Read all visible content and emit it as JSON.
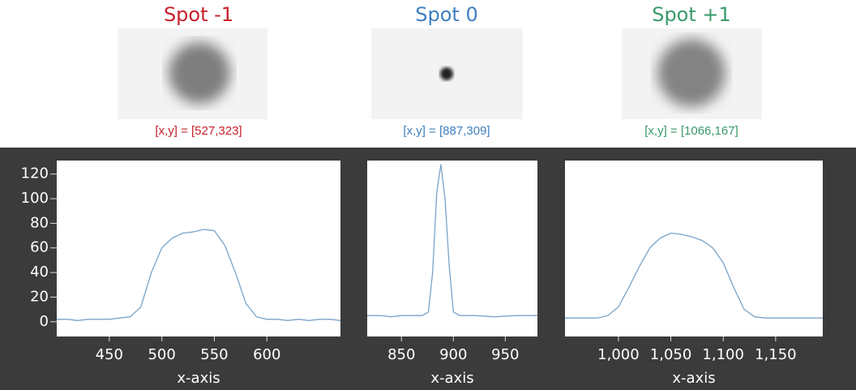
{
  "chart_data": [
    {
      "type": "line",
      "title": "Spot -1",
      "title_color": "#c8202a",
      "annotation": "[x,y] = [527,323]",
      "xlabel": "x-axis",
      "x": [
        400,
        410,
        420,
        430,
        440,
        450,
        460,
        470,
        480,
        490,
        500,
        510,
        520,
        530,
        540,
        550,
        560,
        570,
        580,
        590,
        600,
        610,
        620,
        630,
        640,
        650,
        660,
        670
      ],
      "values": [
        2,
        2,
        1,
        2,
        2,
        2,
        3,
        4,
        12,
        40,
        60,
        68,
        72,
        73,
        75,
        74,
        62,
        40,
        15,
        4,
        2,
        2,
        1,
        2,
        1,
        2,
        2,
        1
      ],
      "color": "#7aa3c8",
      "xlim": [
        400,
        670
      ],
      "ylim": [
        -12,
        131
      ],
      "xticks": [
        450,
        500,
        550,
        600
      ],
      "yticks": [
        0,
        20,
        40,
        60,
        80,
        100,
        120
      ]
    },
    {
      "type": "line",
      "title": "Spot 0",
      "title_color": "#3f7fc0",
      "annotation": "[x,y] = [887,309]",
      "xlabel": "x-axis",
      "x": [
        817,
        830,
        840,
        850,
        860,
        870,
        876,
        880,
        884,
        888,
        892,
        896,
        900,
        906,
        920,
        940,
        960,
        981
      ],
      "values": [
        5,
        5,
        4,
        5,
        5,
        5,
        8,
        40,
        105,
        128,
        100,
        45,
        8,
        5,
        5,
        4,
        5,
        5
      ],
      "color": "#7aa3c8",
      "xlim": [
        817,
        981
      ],
      "ylim": [
        -12,
        131
      ],
      "xticks": [
        850,
        900,
        950
      ]
    },
    {
      "type": "line",
      "title": "Spot +1",
      "title_color": "#3a9a6a",
      "annotation": "[x,y] = [1066,167]",
      "xlabel": "x-axis",
      "x": [
        949,
        960,
        970,
        980,
        990,
        1000,
        1010,
        1020,
        1030,
        1040,
        1050,
        1060,
        1070,
        1080,
        1090,
        1100,
        1110,
        1120,
        1130,
        1140,
        1160,
        1180,
        1195
      ],
      "values": [
        3,
        3,
        3,
        3,
        5,
        12,
        28,
        45,
        60,
        68,
        72,
        71,
        69,
        66,
        60,
        48,
        28,
        10,
        4,
        3,
        3,
        3,
        3
      ],
      "color": "#7aa3c8",
      "xlim": [
        949,
        1195
      ],
      "ylim": [
        -12,
        131
      ],
      "xticks": [
        {
          "value": 1000,
          "label": "1,000"
        },
        {
          "value": 1050,
          "label": "1,050"
        },
        {
          "value": 1100,
          "label": "1,100"
        },
        {
          "value": 1150,
          "label": "1,150"
        }
      ]
    }
  ]
}
